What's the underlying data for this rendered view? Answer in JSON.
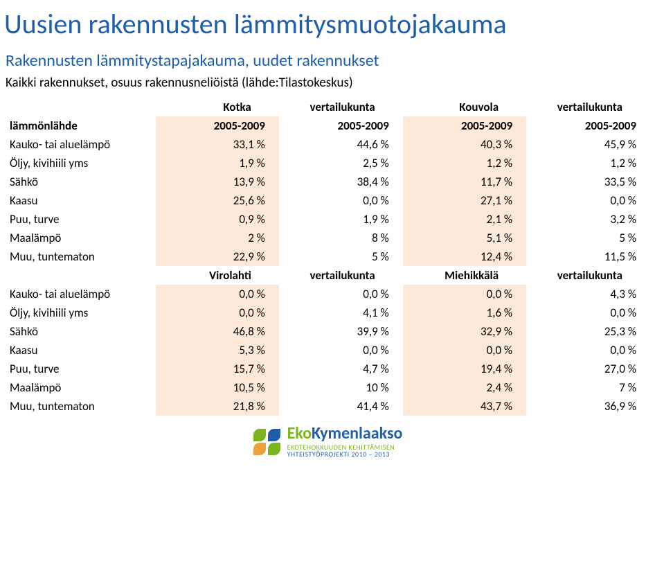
{
  "colors": {
    "title": "#1f5faa",
    "subtitle": "#1f5faa",
    "body_text": "#000000",
    "tint_bg": "#fde9d9",
    "logo_green": "#7ab51d",
    "logo_blue": "#1f5faa",
    "logo_orange": "#e8a33d",
    "logo_tag1": "#7ab51d",
    "logo_tag2": "#1f5faa"
  },
  "fonts": {
    "title_size": 40,
    "subtitle_size": 24,
    "caption_size": 19,
    "table_size": 17
  },
  "title": "Uusien rakennusten lämmitysmuotojakauma",
  "subtitle": "Rakennusten lämmitystapajakauma, uudet rakennukset",
  "caption": "Kaikki rakennukset, osuus rakennusneliöistä (lähde:Tilastokeskus)",
  "table1": {
    "header": [
      "",
      "Kotka",
      "vertailukunta",
      "Kouvola",
      "vertailukunta"
    ],
    "years_row": [
      "lämmönlähde",
      "2005-2009",
      "2005-2009",
      "2005-2009",
      "2005-2009"
    ],
    "rows": [
      [
        "Kauko- tai aluelämpö",
        "33,1 %",
        "44,6 %",
        "40,3 %",
        "45,9 %"
      ],
      [
        "Öljy, kivihiili yms",
        "1,9 %",
        "2,5 %",
        "1,2 %",
        "1,2 %"
      ],
      [
        "Sähkö",
        "13,9 %",
        "38,4 %",
        "11,7 %",
        "33,5 %"
      ],
      [
        "Kaasu",
        "25,6 %",
        "0,0 %",
        "27,1 %",
        "0,0 %"
      ],
      [
        "Puu, turve",
        "0,9 %",
        "1,9 %",
        "2,1 %",
        "3,2 %"
      ],
      [
        "Maalämpö",
        "2 %",
        "8 %",
        "5,1 %",
        "5 %"
      ],
      [
        "Muu, tuntematon",
        "22,9 %",
        "5 %",
        "12,4 %",
        "11,5 %"
      ]
    ]
  },
  "table2": {
    "header": [
      "",
      "Virolahti",
      "vertailukunta",
      "Miehikkälä",
      "vertailukunta"
    ],
    "rows": [
      [
        "Kauko- tai aluelämpö",
        "0,0 %",
        "0,0 %",
        "0,0 %",
        "4,3 %"
      ],
      [
        "Öljy, kivihiili yms",
        "0,0 %",
        "4,1 %",
        "1,6 %",
        "0,0 %"
      ],
      [
        "Sähkö",
        "46,8 %",
        "39,9 %",
        "32,9 %",
        "25,3 %"
      ],
      [
        "Kaasu",
        "5,3 %",
        "0,0 %",
        "0,0 %",
        "0,0 %"
      ],
      [
        "Puu, turve",
        "15,7 %",
        "4,7 %",
        "19,4 %",
        "27,0 %"
      ],
      [
        "Maalämpö",
        "10,5 %",
        "10 %",
        "2,4 %",
        "7 %"
      ],
      [
        "Muu, tuntematon",
        "21,8 %",
        "41,4 %",
        "43,7 %",
        "36,9 %"
      ]
    ]
  },
  "logo": {
    "name_part1": "Eko",
    "name_part2": "Kymenlaakso",
    "tag1": "EKOTEHOKKUUDEN KEHITTÄMISEN",
    "tag2": "YHTEISTYÖPROJEKTI 2010 – 2013"
  }
}
